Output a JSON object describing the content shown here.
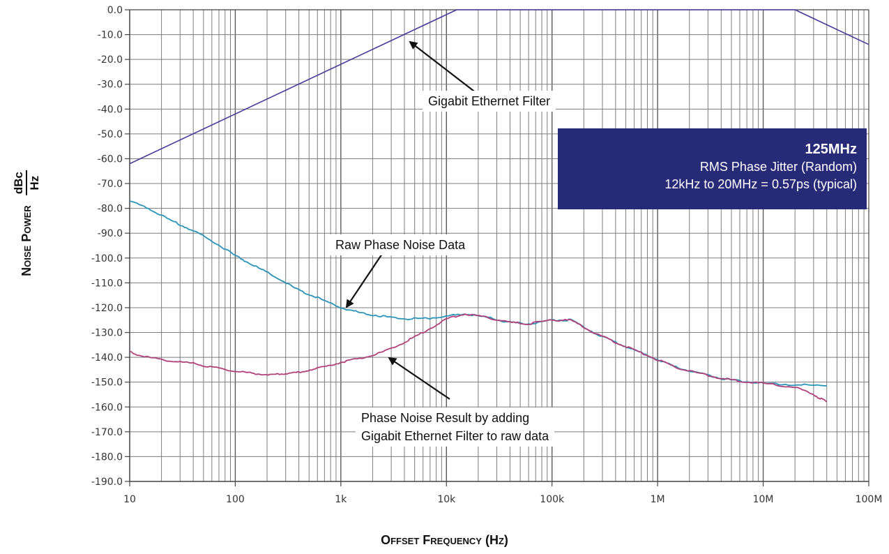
{
  "chart_data": {
    "type": "line",
    "xscale": "log",
    "xlim": [
      10,
      100000000
    ],
    "ylim": [
      -190,
      0
    ],
    "grid": true,
    "xlabel": "Offset Frequency (Hz)",
    "ylabel": {
      "name": "Noise Power",
      "unit_numerator": "dBc",
      "unit_denominator": "Hz"
    },
    "x_ticks": [
      {
        "value": 10,
        "label": "10"
      },
      {
        "value": 100,
        "label": "100"
      },
      {
        "value": 1000,
        "label": "1k"
      },
      {
        "value": 10000,
        "label": "10k"
      },
      {
        "value": 100000,
        "label": "100k"
      },
      {
        "value": 1000000,
        "label": "1M"
      },
      {
        "value": 10000000,
        "label": "10M"
      },
      {
        "value": 100000000,
        "label": "100M"
      }
    ],
    "y_ticks": [
      {
        "value": 0,
        "label": "0.0"
      },
      {
        "value": -10,
        "label": "-10.0"
      },
      {
        "value": -20,
        "label": "-20.0"
      },
      {
        "value": -30,
        "label": "-30.0"
      },
      {
        "value": -40,
        "label": "-40.0"
      },
      {
        "value": -50,
        "label": "-50.0"
      },
      {
        "value": -60,
        "label": "-60.0"
      },
      {
        "value": -70,
        "label": "-70.0"
      },
      {
        "value": -80,
        "label": "-80.0"
      },
      {
        "value": -90,
        "label": "-90.0"
      },
      {
        "value": -100,
        "label": "-100.0"
      },
      {
        "value": -110,
        "label": "-110.0"
      },
      {
        "value": -120,
        "label": "-120.0"
      },
      {
        "value": -130,
        "label": "-130.0"
      },
      {
        "value": -140,
        "label": "-140.0"
      },
      {
        "value": -150,
        "label": "-150.0"
      },
      {
        "value": -160,
        "label": "-160.0"
      },
      {
        "value": -170,
        "label": "-170.0"
      },
      {
        "value": -180,
        "label": "-180.0"
      },
      {
        "value": -190,
        "label": "-190.0"
      }
    ],
    "series": [
      {
        "color": "#4a3a9a",
        "x": [
          10,
          12500,
          20000000,
          100000000
        ],
        "y": [
          -62,
          0,
          0,
          -14
        ]
      },
      {
        "color": "#2a93b8",
        "x": [
          10,
          15,
          25,
          40,
          60,
          100,
          150,
          250,
          400,
          600,
          1000,
          1500,
          2500,
          4000,
          6000,
          10000,
          15000,
          25000,
          40000,
          60000,
          100000,
          150000,
          250000,
          400000,
          600000,
          1000000,
          1500000,
          2500000,
          4000000,
          6000000,
          10000000,
          20000000,
          40000000
        ],
        "y": [
          -77,
          -80,
          -85,
          -89,
          -93,
          -99,
          -103,
          -108,
          -113,
          -116,
          -120,
          -122,
          -123.5,
          -124.5,
          -124.5,
          -123.5,
          -122.5,
          -124,
          -126,
          -126.5,
          -125,
          -125,
          -130,
          -134,
          -137,
          -141,
          -144,
          -146.5,
          -148.5,
          -149.5,
          -150.5,
          -151,
          -151.5
        ]
      },
      {
        "color": "#b0407a",
        "x": [
          10,
          15,
          25,
          40,
          60,
          100,
          150,
          220,
          300,
          400,
          600,
          1000,
          1500,
          2500,
          4000,
          6000,
          10000,
          15000,
          25000,
          40000,
          60000,
          100000,
          150000,
          250000,
          400000,
          600000,
          1000000,
          1500000,
          2500000,
          4000000,
          6000000,
          10000000,
          20000000,
          30000000,
          40000000
        ],
        "y": [
          -138,
          -140,
          -141.5,
          -142.5,
          -144,
          -145.5,
          -146.5,
          -147,
          -146.5,
          -146,
          -144.5,
          -142,
          -140.5,
          -138,
          -134,
          -130,
          -124.5,
          -122.5,
          -124,
          -126,
          -126.5,
          -125,
          -125,
          -130,
          -134,
          -137,
          -141,
          -144,
          -146.5,
          -148.5,
          -149.5,
          -150.5,
          -152,
          -155,
          -158
        ]
      }
    ]
  },
  "annotations": {
    "filter_label": "Gigabit Ethernet Filter",
    "raw_label": "Raw Phase Noise Data",
    "result_label_line1": "Phase Noise Result by adding",
    "result_label_line2": "Gigabit Ethernet Filter to raw data"
  },
  "info_box": {
    "title": "125MHz",
    "line1": "RMS Phase Jitter (Random)",
    "line2": "12kHz to 20MHz = 0.57ps (typical)"
  }
}
